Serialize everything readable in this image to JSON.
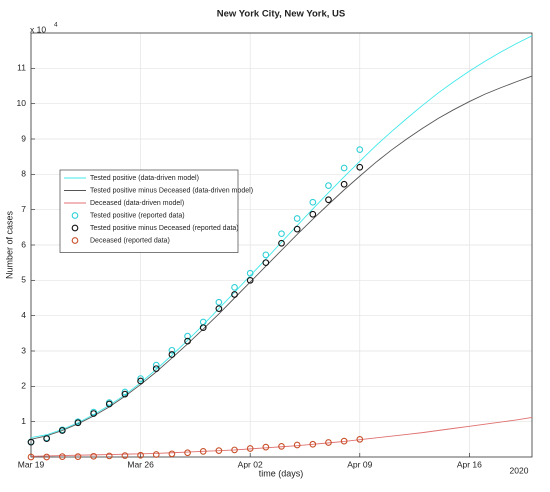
{
  "chart_data": {
    "type": "line",
    "title": "New York City, New York, US",
    "x_label": "time (days)",
    "y_label": "Number of cases",
    "y_multiplier": {
      "base": "x 10",
      "exponent": "4"
    },
    "x_year_label": "2020",
    "xlim": [
      0,
      32
    ],
    "ylim": [
      0,
      12
    ],
    "xticks": [
      {
        "value": 0,
        "label": "Mar 19"
      },
      {
        "value": 7,
        "label": "Mar 26"
      },
      {
        "value": 14,
        "label": "Apr 02"
      },
      {
        "value": 21,
        "label": "Apr 09"
      },
      {
        "value": 28,
        "label": "Apr 16"
      }
    ],
    "yticks": [
      1,
      2,
      3,
      4,
      5,
      6,
      7,
      8,
      9,
      10,
      11
    ],
    "grid": true,
    "legend": "left",
    "series": [
      {
        "name": "Tested positive  (data-driven model)",
        "style": "line",
        "color": "#40e8ea",
        "x": [
          0,
          1,
          2,
          3,
          4,
          5,
          6,
          7,
          8,
          9,
          10,
          11,
          12,
          13,
          14,
          15,
          16,
          17,
          18,
          19,
          20,
          21,
          22,
          23,
          24,
          25,
          26,
          27,
          28,
          29,
          30,
          31,
          32
        ],
        "values": [
          0.55,
          0.63,
          0.78,
          0.97,
          1.2,
          1.46,
          1.76,
          2.1,
          2.48,
          2.88,
          3.3,
          3.74,
          4.2,
          4.66,
          5.13,
          5.6,
          6.08,
          6.55,
          7.02,
          7.48,
          7.93,
          8.37,
          8.8,
          9.2,
          9.58,
          9.95,
          10.3,
          10.62,
          10.92,
          11.2,
          11.46,
          11.7,
          11.92
        ]
      },
      {
        "name": "Tested positive minus Deceased (data-driven model)",
        "style": "line",
        "color": "#555555",
        "x": [
          0,
          1,
          2,
          3,
          4,
          5,
          6,
          7,
          8,
          9,
          10,
          11,
          12,
          13,
          14,
          15,
          16,
          17,
          18,
          19,
          20,
          21,
          22,
          23,
          24,
          25,
          26,
          27,
          28,
          29,
          30,
          31,
          32
        ],
        "values": [
          0.5,
          0.6,
          0.75,
          0.94,
          1.16,
          1.42,
          1.72,
          2.05,
          2.41,
          2.8,
          3.2,
          3.62,
          4.05,
          4.5,
          4.95,
          5.4,
          5.85,
          6.3,
          6.73,
          7.15,
          7.56,
          7.95,
          8.33,
          8.68,
          9.0,
          9.3,
          9.58,
          9.83,
          10.06,
          10.27,
          10.45,
          10.62,
          10.78
        ]
      },
      {
        "name": "Deceased (data-driven model)",
        "style": "line",
        "color": "#e07070",
        "x": [
          0,
          1,
          2,
          3,
          4,
          5,
          6,
          7,
          8,
          9,
          10,
          11,
          12,
          13,
          14,
          15,
          16,
          17,
          18,
          19,
          20,
          21,
          22,
          23,
          24,
          25,
          26,
          27,
          28,
          29,
          30,
          31,
          32
        ],
        "values": [
          0.02,
          0.03,
          0.04,
          0.05,
          0.06,
          0.07,
          0.08,
          0.09,
          0.1,
          0.12,
          0.14,
          0.16,
          0.18,
          0.2,
          0.23,
          0.26,
          0.29,
          0.32,
          0.36,
          0.4,
          0.44,
          0.49,
          0.54,
          0.59,
          0.64,
          0.69,
          0.75,
          0.81,
          0.87,
          0.93,
          0.99,
          1.05,
          1.12
        ]
      },
      {
        "name": "Tested positive  (reported data)",
        "style": "markers",
        "color": "#30d0d8",
        "x": [
          0,
          1,
          2,
          3,
          4,
          5,
          6,
          7,
          8,
          9,
          10,
          11,
          12,
          13,
          14,
          15,
          16,
          17,
          18,
          19,
          20,
          21
        ],
        "values": [
          0.43,
          0.54,
          0.77,
          1.0,
          1.27,
          1.54,
          1.84,
          2.22,
          2.6,
          3.02,
          3.42,
          3.82,
          4.38,
          4.8,
          5.2,
          5.72,
          6.32,
          6.75,
          7.21,
          7.68,
          8.18,
          8.7
        ]
      },
      {
        "name": "Tested positive minus Deceased  (reported data)",
        "style": "markers",
        "color": "#111111",
        "x": [
          0,
          1,
          2,
          3,
          4,
          5,
          6,
          7,
          8,
          9,
          10,
          11,
          12,
          13,
          14,
          15,
          16,
          17,
          18,
          19,
          20,
          21
        ],
        "values": [
          0.42,
          0.52,
          0.75,
          0.97,
          1.23,
          1.5,
          1.78,
          2.15,
          2.5,
          2.9,
          3.28,
          3.66,
          4.2,
          4.6,
          5.0,
          5.5,
          6.05,
          6.45,
          6.87,
          7.28,
          7.72,
          8.2
        ]
      },
      {
        "name": "Deceased  (reported data)",
        "style": "markers",
        "color": "#c8502a",
        "x": [
          0,
          1,
          2,
          3,
          4,
          5,
          6,
          7,
          8,
          9,
          10,
          11,
          12,
          13,
          14,
          15,
          16,
          17,
          18,
          19,
          20,
          21
        ],
        "values": [
          0.0,
          0.0,
          0.01,
          0.01,
          0.02,
          0.03,
          0.04,
          0.05,
          0.07,
          0.09,
          0.12,
          0.16,
          0.18,
          0.2,
          0.24,
          0.28,
          0.3,
          0.34,
          0.36,
          0.41,
          0.45,
          0.5
        ]
      }
    ]
  }
}
